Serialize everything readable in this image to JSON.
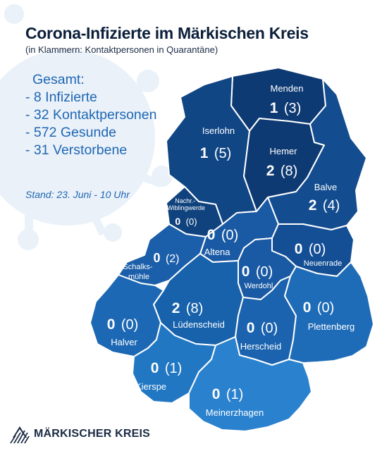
{
  "header": {
    "title": "Corona-Infizierte im Märkischen Kreis",
    "subtitle": "(in Klammern: Kontaktpersonen in Quarantäne)"
  },
  "stats": {
    "heading": "Gesamt:",
    "lines": [
      "- 8 Infizierte",
      "- 32 Kontaktpersonen",
      "- 572 Gesunde",
      "- 31 Verstorbene"
    ]
  },
  "stand": "Stand: 23. Juni - 10 Uhr",
  "regions": [
    {
      "id": "menden",
      "name": "Menden",
      "infected": "1",
      "contacts": "(3)",
      "fill": "#0e3a73"
    },
    {
      "id": "iserlohn",
      "name": "Iserlohn",
      "infected": "1",
      "contacts": "(5)",
      "fill": "#114685"
    },
    {
      "id": "hemer",
      "name": "Hemer",
      "infected": "2",
      "contacts": "(8)",
      "fill": "#0e3a73"
    },
    {
      "id": "balve",
      "name": "Balve",
      "infected": "2",
      "contacts": "(4)",
      "fill": "#134c8f"
    },
    {
      "id": "nachrodt",
      "name": "Nachr.-\nWiblingwerde",
      "infected": "0",
      "contacts": "(0)",
      "fill": "#10427d"
    },
    {
      "id": "altena",
      "name": "Altena",
      "infected": "0",
      "contacts": "(0)",
      "fill": "#1a5aa4"
    },
    {
      "id": "neuenrade",
      "name": "Neuenrade",
      "infected": "0",
      "contacts": "(0)",
      "fill": "#144f95"
    },
    {
      "id": "schalksmuehle",
      "name": "Schalks-\nmühle",
      "infected": "0",
      "contacts": "(2)",
      "fill": "#1b5ea9"
    },
    {
      "id": "werdohl",
      "name": "Werdohl",
      "infected": "0",
      "contacts": "(0)",
      "fill": "#1a5aa4"
    },
    {
      "id": "luedenscheid",
      "name": "Lüdenscheid",
      "infected": "2",
      "contacts": "(8)",
      "fill": "#1762ab"
    },
    {
      "id": "halver",
      "name": "Halver",
      "infected": "0",
      "contacts": "(0)",
      "fill": "#1d68b4"
    },
    {
      "id": "herscheid",
      "name": "Herscheid",
      "infected": "0",
      "contacts": "(0)",
      "fill": "#1b63ae"
    },
    {
      "id": "plettenberg",
      "name": "Plettenberg",
      "infected": "0",
      "contacts": "(0)",
      "fill": "#1e6cb8"
    },
    {
      "id": "kierspe",
      "name": "Kierspe",
      "infected": "0",
      "contacts": "(1)",
      "fill": "#2277c3"
    },
    {
      "id": "meinerzhagen",
      "name": "Meinerzhagen",
      "infected": "0",
      "contacts": "(1)",
      "fill": "#2a82cf"
    }
  ],
  "logo": {
    "text": "MÄRKISCHER KREIS"
  },
  "colors": {
    "title": "#0b1f3a",
    "accent": "#1f67b3",
    "border": "#ffffff",
    "virus": "#eaf1f9"
  }
}
